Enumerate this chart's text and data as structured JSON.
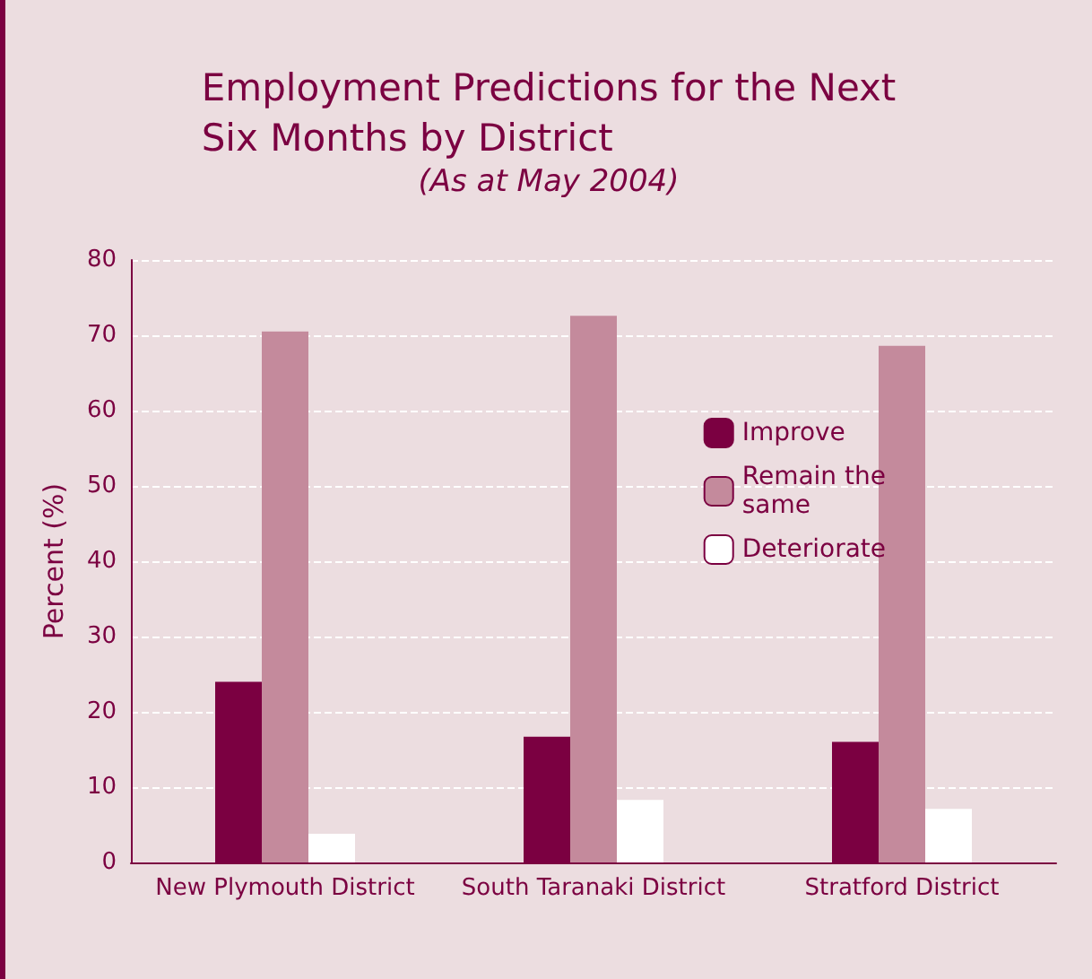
{
  "chart_data": {
    "type": "bar",
    "title": "Employment Predictions for the Next\nSix Months by District",
    "subtitle": "(As at May 2004)",
    "ylabel": "Percent (%)",
    "categories": [
      "New Plymouth District",
      "South Taranaki District",
      "Stratford District"
    ],
    "series": [
      {
        "name": "Improve",
        "color": "#7b0041",
        "values": [
          24,
          16.7,
          16
        ]
      },
      {
        "name": "Remain the\nsame",
        "color": "#c48a9c",
        "values": [
          70.5,
          72.6,
          68.6
        ]
      },
      {
        "name": "Deteriorate",
        "color": "#ffffff",
        "values": [
          3.8,
          8.3,
          7.1
        ]
      }
    ],
    "ylim": [
      0,
      80
    ],
    "yticks": [
      0,
      10,
      20,
      30,
      40,
      50,
      60,
      70,
      80
    ],
    "grid": "y",
    "legend": "right"
  }
}
